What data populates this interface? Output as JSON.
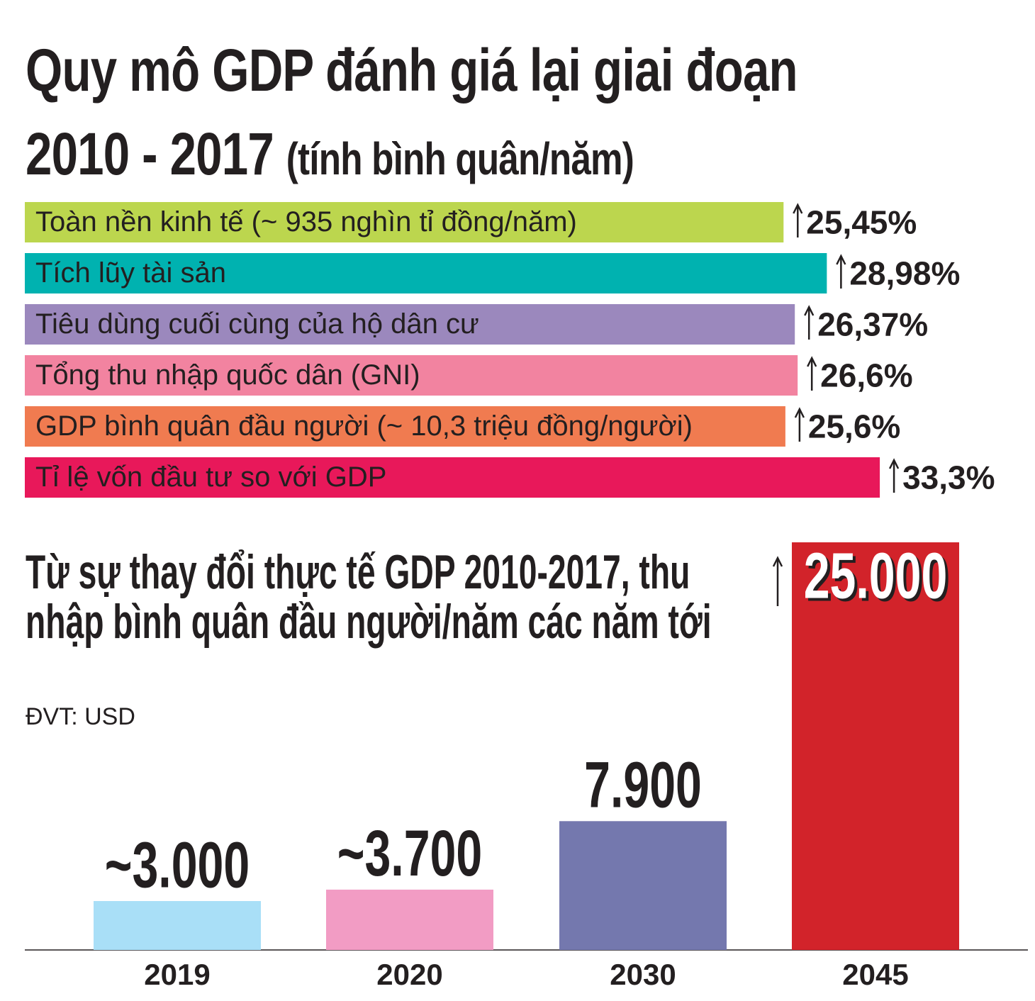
{
  "chart_data": [
    {
      "type": "hbar",
      "title": "Quy mô GDP đánh giá lại giai đoạn 2010 - 2017",
      "subtitle": "(tính bình quân/năm)",
      "categories": [
        "Toàn nền kinh tế (~ 935 nghìn tỉ đồng/năm)",
        "Tích lũy tài sản",
        "Tiêu dùng cuối cùng của hộ dân cư",
        "Tổng thu nhập quốc dân (GNI)",
        "GDP bình quân đầu người (~ 10,3 triệu đồng/người)",
        "Tỉ lệ vốn đầu tư so với GDP"
      ],
      "values": [
        25.45,
        28.98,
        26.37,
        26.6,
        25.6,
        33.3
      ],
      "value_labels": [
        "25,45%",
        "28,98%",
        "26,37%",
        "26,6%",
        "25,6%",
        "33,3%"
      ],
      "colors": [
        "#bcd64e",
        "#00b2b0",
        "#9b88bd",
        "#f283a0",
        "#f07b50",
        "#e8185a"
      ]
    },
    {
      "type": "bar",
      "title": "Từ sự thay đổi thực tế GDP 2010-2017, thu nhập bình quân đầu người/năm các năm tới",
      "subtitle": "ĐVT: USD",
      "categories": [
        "2019",
        "2020",
        "2030",
        "2045"
      ],
      "values": [
        3000,
        3700,
        7900,
        25000
      ],
      "value_labels": [
        "~3.000",
        "~3.700",
        "7.900",
        "25.000"
      ],
      "colors": [
        "#a9dff7",
        "#f29cc4",
        "#7478ae",
        "#d2232a"
      ]
    }
  ]
}
